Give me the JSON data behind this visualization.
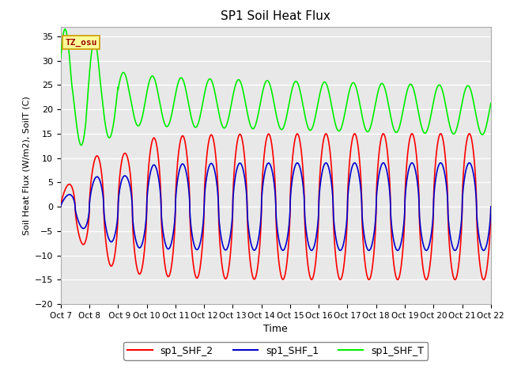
{
  "title": "SP1 Soil Heat Flux",
  "ylabel": "Soil Heat Flux (W/m2), SoilT (C)",
  "xlabel": "Time",
  "ylim": [
    -20,
    37
  ],
  "yticks": [
    -20,
    -15,
    -10,
    -5,
    0,
    5,
    10,
    15,
    20,
    25,
    30,
    35
  ],
  "xtick_labels": [
    "Oct 7",
    "Oct 8",
    " Oct 9",
    "Oct 10",
    "Oct 11",
    "Oct 12",
    "Oct 13",
    "Oct 14",
    "Oct 15",
    "Oct 16",
    "Oct 17",
    "Oct 18",
    "Oct 19",
    "Oct 20",
    "Oct 21",
    "Oct 22"
  ],
  "color_red": "#ff0000",
  "color_blue": "#0000cc",
  "color_green": "#00ee00",
  "bg_color": "#e8e8e8",
  "fig_bg": "#ffffff",
  "legend_labels": [
    "sp1_SHF_2",
    "sp1_SHF_1",
    "sp1_SHF_T"
  ],
  "annotation_text": "TZ_osu",
  "annotation_color": "#990000",
  "annotation_bg": "#ffff99",
  "linewidth": 1.2
}
